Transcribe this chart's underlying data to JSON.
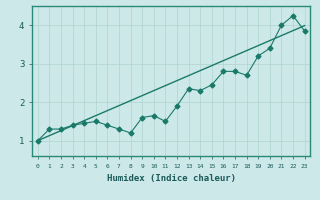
{
  "title": "",
  "xlabel": "Humidex (Indice chaleur)",
  "ylabel": "",
  "background_color": "#cde8e8",
  "grid_color": "#b0d4cc",
  "line_color": "#1a7a6a",
  "xlim": [
    -0.5,
    23.5
  ],
  "ylim": [
    0.6,
    4.5
  ],
  "yticks": [
    1,
    2,
    3,
    4
  ],
  "xticks": [
    0,
    1,
    2,
    3,
    4,
    5,
    6,
    7,
    8,
    9,
    10,
    11,
    12,
    13,
    14,
    15,
    16,
    17,
    18,
    19,
    20,
    21,
    22,
    23
  ],
  "xtick_labels": [
    "0",
    "1",
    "2",
    "3",
    "4",
    "5",
    "6",
    "7",
    "8",
    "9",
    "10",
    "11",
    "12",
    "13",
    "14",
    "15",
    "16",
    "17",
    "18",
    "19",
    "20",
    "21",
    "22",
    "23"
  ],
  "x_data": [
    0,
    1,
    2,
    3,
    4,
    5,
    6,
    7,
    8,
    9,
    10,
    11,
    12,
    13,
    14,
    15,
    16,
    17,
    18,
    19,
    20,
    21,
    22,
    23
  ],
  "y_zigzag": [
    1.0,
    1.3,
    1.3,
    1.4,
    1.45,
    1.5,
    1.4,
    1.3,
    1.2,
    1.6,
    1.65,
    1.5,
    1.9,
    2.35,
    2.3,
    2.45,
    2.8,
    2.8,
    2.7,
    3.2,
    3.4,
    4.0,
    4.25,
    3.85
  ],
  "y_linear": [
    1.0,
    1.13,
    1.26,
    1.39,
    1.52,
    1.65,
    1.78,
    1.91,
    2.04,
    2.17,
    2.3,
    2.43,
    2.56,
    2.69,
    2.82,
    2.95,
    3.08,
    3.21,
    3.34,
    3.47,
    3.6,
    3.73,
    3.86,
    3.99
  ]
}
